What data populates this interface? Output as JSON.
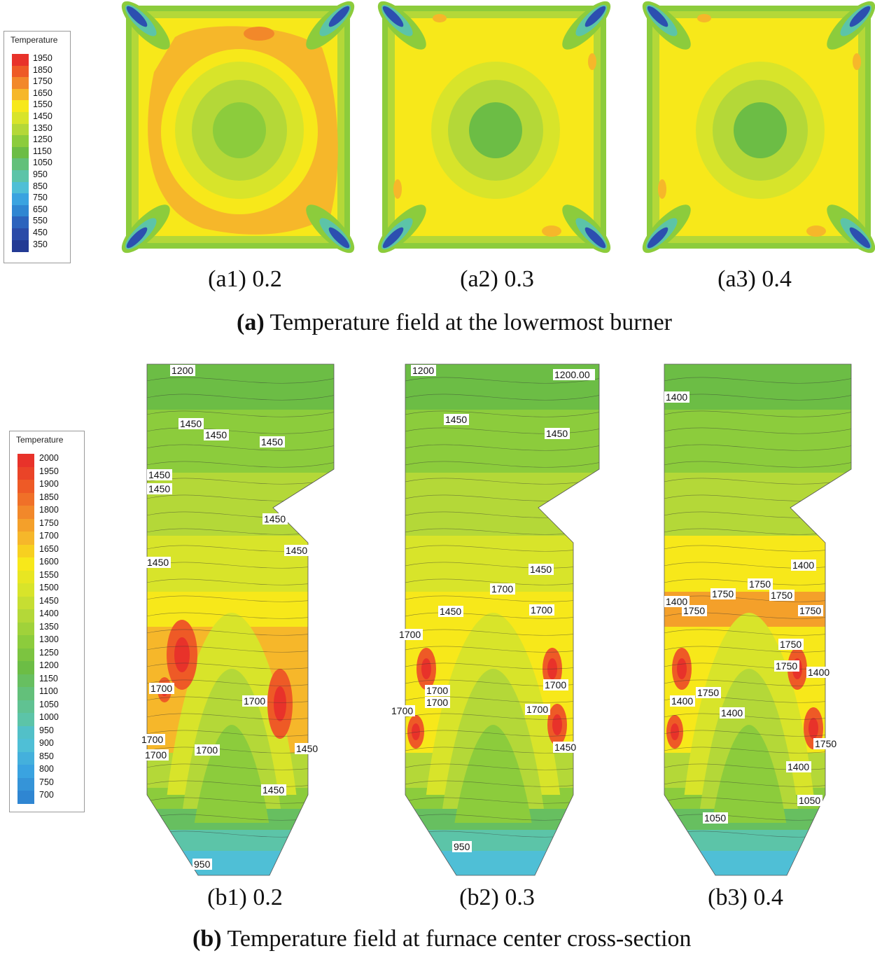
{
  "chart_data": [
    {
      "type": "heatmap",
      "title": "Temperature field at the lowermost burner",
      "title_prefix": "(a)",
      "legend": {
        "title": "Temperature",
        "levels": [
          1950,
          1850,
          1750,
          1650,
          1550,
          1450,
          1350,
          1250,
          1150,
          1050,
          950,
          850,
          750,
          650,
          550,
          450,
          350
        ],
        "colors": [
          "#e8322a",
          "#ee5a26",
          "#f2882a",
          "#f6b72a",
          "#f7e81a",
          "#d8e42a",
          "#b4d838",
          "#8ccc3c",
          "#6cbd45",
          "#63c07a",
          "#5cc4a8",
          "#4fbfd6",
          "#3aa3e0",
          "#2f86d2",
          "#2c63bd",
          "#2a4ba8",
          "#233a94"
        ]
      },
      "panels": [
        {
          "label": "(a1) 0.2",
          "value": 0.2,
          "dominant": "#f6b72a"
        },
        {
          "label": "(a2) 0.3",
          "value": 0.3,
          "dominant": "#f7e81a"
        },
        {
          "label": "(a3) 0.4",
          "value": 0.4,
          "dominant": "#f7e81a"
        }
      ]
    },
    {
      "type": "heatmap",
      "title": "Temperature field at furnace center cross-section",
      "title_prefix": "(b)",
      "legend": {
        "title": "Temperature",
        "levels": [
          2000,
          1950,
          1900,
          1850,
          1800,
          1750,
          1700,
          1650,
          1600,
          1550,
          1500,
          1450,
          1400,
          1350,
          1300,
          1250,
          1200,
          1150,
          1100,
          1050,
          1000,
          950,
          900,
          850,
          800,
          750,
          700
        ],
        "colors": [
          "#e8322a",
          "#ea4428",
          "#ee5a26",
          "#f07028",
          "#f2882a",
          "#f4a02a",
          "#f6b72a",
          "#f7d020",
          "#f7e81a",
          "#e8e622",
          "#d8e42a",
          "#c6de32",
          "#b4d838",
          "#a0d23a",
          "#8ccc3c",
          "#7cc440",
          "#6cbd45",
          "#67bf60",
          "#63c07a",
          "#60c292",
          "#5cc4a8",
          "#52c0c8",
          "#4fbfd6",
          "#44b0dc",
          "#3aa3e0",
          "#3594d8",
          "#2f86d2"
        ]
      },
      "panels": [
        {
          "label": "(b1) 0.2",
          "value": 0.2,
          "contour_labels": [
            "1200",
            "1450",
            "1450",
            "1450",
            "1450",
            "1450",
            "1450",
            "1450",
            "1450",
            "1700",
            "1700",
            "1700",
            "1700",
            "1700",
            "1450",
            "1450",
            "950"
          ]
        },
        {
          "label": "(b2) 0.3",
          "value": 0.3,
          "contour_labels": [
            "1200",
            "1200.00",
            "1450",
            "1450",
            "1450",
            "1700",
            "1700",
            "1450",
            "1700",
            "1700",
            "1700",
            "1700",
            "1700",
            "1700",
            "1450",
            "950"
          ]
        },
        {
          "label": "(b3) 0.4",
          "value": 0.4,
          "contour_labels": [
            "1400",
            "1400",
            "1750",
            "1750",
            "1400",
            "1750",
            "1750",
            "1750",
            "1750",
            "1400",
            "1750",
            "1750",
            "1400",
            "1400",
            "1750",
            "1400",
            "1050",
            "1050"
          ]
        }
      ]
    }
  ]
}
